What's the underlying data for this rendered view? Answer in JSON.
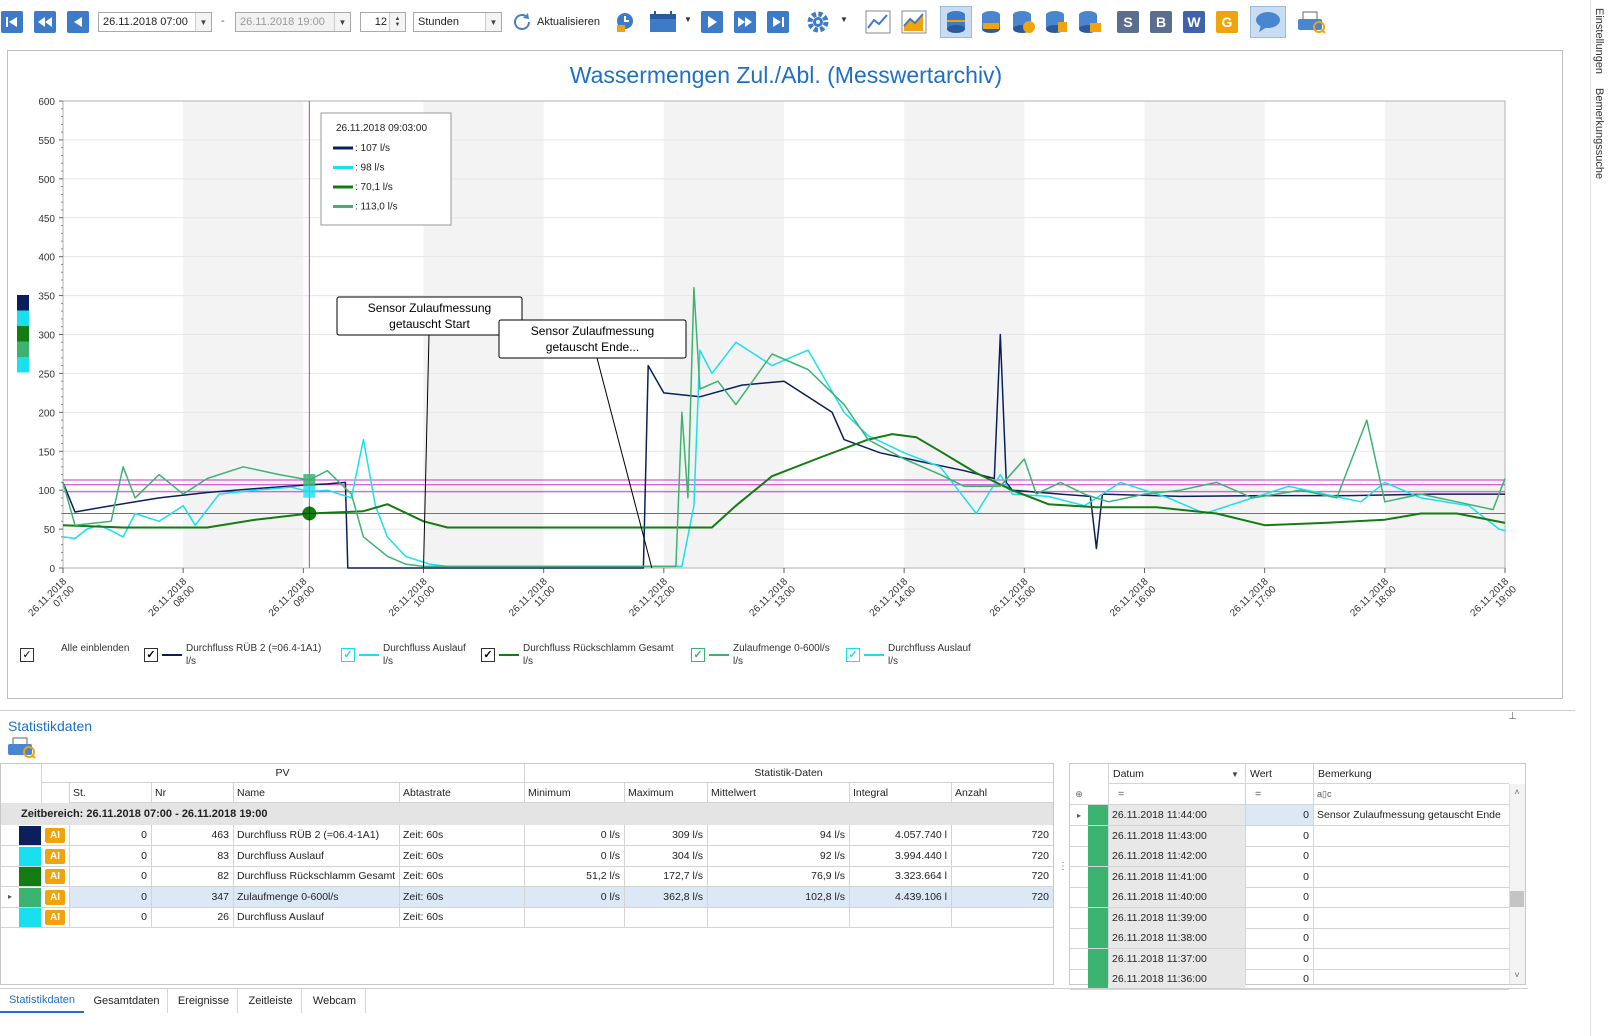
{
  "toolbar": {
    "date_from": "26.11.2018 07:00",
    "date_separator": "-",
    "date_to": "26.11.2018 19:00",
    "count": "12",
    "unit": "Stunden",
    "refresh_label": "Aktualisieren",
    "letters": [
      "S",
      "B",
      "W",
      "G"
    ],
    "colors": {
      "nav": "#2f6db5",
      "accent": "#2f6db5",
      "s": "#5a6f8f",
      "b": "#5a6f8f",
      "w": "#3f63a8",
      "g": "#f0a30a"
    }
  },
  "right_tabs": [
    "Einstellungen",
    "Bemerkungssuche"
  ],
  "chart_data": {
    "type": "line",
    "title": "Wassermengen Zul./Abl. (Messwertarchiv)",
    "ylim": [
      0,
      600
    ],
    "yticks": [
      "0",
      "50",
      "100",
      "150",
      "200",
      "250",
      "300",
      "350",
      "400",
      "450",
      "500",
      "550",
      "600"
    ],
    "xlim": [
      7,
      19
    ],
    "xticks": [
      [
        "26.11.2018",
        "07:00"
      ],
      [
        "26.11.2018",
        "08:00"
      ],
      [
        "26.11.2018",
        "09:00"
      ],
      [
        "26.11.2018",
        "10:00"
      ],
      [
        "26.11.2018",
        "11:00"
      ],
      [
        "26.11.2018",
        "12:00"
      ],
      [
        "26.11.2018",
        "13:00"
      ],
      [
        "26.11.2018",
        "14:00"
      ],
      [
        "26.11.2018",
        "15:00"
      ],
      [
        "26.11.2018",
        "16:00"
      ],
      [
        "26.11.2018",
        "17:00"
      ],
      [
        "26.11.2018",
        "18:00"
      ],
      [
        "26.11.2018",
        "19:00"
      ]
    ],
    "grid": true,
    "cursor": {
      "x": 9.05,
      "time": "26.11.2018 09:03:00",
      "values": [
        ": 107 l/s",
        ": 98 l/s",
        ": 70,1 l/s",
        ": 113,0 l/s"
      ],
      "colors": [
        "#0b1f5c",
        "#19e0ef",
        "#137c13",
        "#3cb371"
      ]
    },
    "reference_lines": [
      70,
      98,
      107,
      113
    ],
    "reference_color": "#cc33cc",
    "annotations": [
      {
        "text": [
          "Sensor Zulaufmessung",
          "getauscht Start"
        ],
        "x": 10.0
      },
      {
        "text": [
          "Sensor Zulaufmessung",
          "getauscht Ende..."
        ],
        "x": 11.9
      }
    ],
    "series": [
      {
        "name": "Durchfluss RÜB 2 (=06.4-1A1) l/s",
        "color": "#0b1f5c",
        "points": [
          [
            7,
            110
          ],
          [
            7.1,
            72
          ],
          [
            7.4,
            80
          ],
          [
            7.8,
            90
          ],
          [
            8.2,
            97
          ],
          [
            8.6,
            102
          ],
          [
            9.05,
            107
          ],
          [
            9.2,
            108
          ],
          [
            9.35,
            110
          ],
          [
            9.37,
            0
          ],
          [
            11.0,
            0
          ],
          [
            11.83,
            0
          ],
          [
            11.87,
            260
          ],
          [
            12.0,
            225
          ],
          [
            12.3,
            220
          ],
          [
            12.65,
            235
          ],
          [
            13.0,
            240
          ],
          [
            13.4,
            200
          ],
          [
            13.5,
            165
          ],
          [
            13.8,
            148
          ],
          [
            14.1,
            138
          ],
          [
            14.5,
            125
          ],
          [
            14.75,
            115
          ],
          [
            14.8,
            300
          ],
          [
            14.85,
            110
          ],
          [
            14.9,
            100
          ],
          [
            15.3,
            95
          ],
          [
            15.55,
            92
          ],
          [
            15.6,
            25
          ],
          [
            15.65,
            95
          ],
          [
            16.3,
            92
          ],
          [
            17.0,
            93
          ],
          [
            17.7,
            93
          ],
          [
            18.4,
            95
          ],
          [
            19,
            95
          ]
        ]
      },
      {
        "name": "Durchfluss Auslauf l/s",
        "color": "#19e0ef",
        "points": [
          [
            7,
            40
          ],
          [
            7.1,
            38
          ],
          [
            7.2,
            50
          ],
          [
            7.3,
            55
          ],
          [
            7.4,
            48
          ],
          [
            7.5,
            40
          ],
          [
            7.6,
            70
          ],
          [
            7.8,
            60
          ],
          [
            8.0,
            80
          ],
          [
            8.1,
            55
          ],
          [
            8.3,
            95
          ],
          [
            8.6,
            100
          ],
          [
            8.9,
            104
          ],
          [
            9.05,
            98
          ],
          [
            9.2,
            100
          ],
          [
            9.4,
            90
          ],
          [
            9.5,
            165
          ],
          [
            9.6,
            80
          ],
          [
            9.7,
            40
          ],
          [
            9.85,
            15
          ],
          [
            10.05,
            5
          ],
          [
            10.2,
            2
          ],
          [
            11.85,
            2
          ],
          [
            12.15,
            2
          ],
          [
            12.25,
            80
          ],
          [
            12.3,
            280
          ],
          [
            12.4,
            250
          ],
          [
            12.6,
            290
          ],
          [
            12.9,
            260
          ],
          [
            13.2,
            280
          ],
          [
            13.5,
            200
          ],
          [
            13.7,
            170
          ],
          [
            14.0,
            148
          ],
          [
            14.3,
            130
          ],
          [
            14.5,
            90
          ],
          [
            14.6,
            70
          ],
          [
            14.8,
            120
          ],
          [
            14.9,
            95
          ],
          [
            15.2,
            92
          ],
          [
            15.5,
            80
          ],
          [
            15.8,
            110
          ],
          [
            16.2,
            90
          ],
          [
            16.5,
            70
          ],
          [
            16.9,
            90
          ],
          [
            17.2,
            105
          ],
          [
            17.5,
            95
          ],
          [
            17.8,
            85
          ],
          [
            18.0,
            110
          ],
          [
            18.3,
            90
          ],
          [
            18.5,
            85
          ],
          [
            18.7,
            80
          ],
          [
            18.95,
            50
          ],
          [
            19,
            48
          ]
        ]
      },
      {
        "name": "Durchfluss Rückschlamm Gesamt l/s",
        "color": "#137c13",
        "points": [
          [
            7,
            55
          ],
          [
            7.5,
            52
          ],
          [
            8.2,
            52
          ],
          [
            8.6,
            62
          ],
          [
            9.05,
            70
          ],
          [
            9.5,
            73
          ],
          [
            9.7,
            82
          ],
          [
            10.0,
            60
          ],
          [
            10.2,
            52
          ],
          [
            11.7,
            52
          ],
          [
            12.4,
            52
          ],
          [
            12.6,
            80
          ],
          [
            12.9,
            118
          ],
          [
            13.3,
            142
          ],
          [
            13.7,
            165
          ],
          [
            13.9,
            172
          ],
          [
            14.1,
            168
          ],
          [
            14.3,
            150
          ],
          [
            14.6,
            122
          ],
          [
            14.9,
            100
          ],
          [
            15.2,
            82
          ],
          [
            15.6,
            78
          ],
          [
            16.1,
            78
          ],
          [
            16.6,
            70
          ],
          [
            17.0,
            55
          ],
          [
            17.5,
            58
          ],
          [
            18.0,
            62
          ],
          [
            18.3,
            70
          ],
          [
            18.6,
            70
          ],
          [
            19,
            58
          ]
        ]
      },
      {
        "name": "Zulaufmenge 0-600l/s l/s",
        "color": "#3cb371",
        "points": [
          [
            7,
            110
          ],
          [
            7.1,
            55
          ],
          [
            7.4,
            60
          ],
          [
            7.5,
            130
          ],
          [
            7.6,
            90
          ],
          [
            7.8,
            120
          ],
          [
            8.0,
            95
          ],
          [
            8.2,
            115
          ],
          [
            8.5,
            130
          ],
          [
            8.8,
            120
          ],
          [
            9.05,
            113
          ],
          [
            9.2,
            125
          ],
          [
            9.4,
            95
          ],
          [
            9.5,
            40
          ],
          [
            9.7,
            15
          ],
          [
            9.85,
            5
          ],
          [
            10.0,
            2
          ],
          [
            11.9,
            2
          ],
          [
            12.1,
            2
          ],
          [
            12.15,
            200
          ],
          [
            12.2,
            90
          ],
          [
            12.25,
            360
          ],
          [
            12.3,
            230
          ],
          [
            12.45,
            240
          ],
          [
            12.6,
            210
          ],
          [
            12.9,
            275
          ],
          [
            13.2,
            255
          ],
          [
            13.5,
            210
          ],
          [
            13.7,
            165
          ],
          [
            14.0,
            140
          ],
          [
            14.3,
            120
          ],
          [
            14.5,
            105
          ],
          [
            14.8,
            105
          ],
          [
            15.0,
            140
          ],
          [
            15.1,
            95
          ],
          [
            15.3,
            110
          ],
          [
            15.5,
            95
          ],
          [
            15.7,
            85
          ],
          [
            16.0,
            95
          ],
          [
            16.3,
            100
          ],
          [
            16.6,
            110
          ],
          [
            16.9,
            90
          ],
          [
            17.3,
            100
          ],
          [
            17.6,
            90
          ],
          [
            17.85,
            190
          ],
          [
            18.0,
            85
          ],
          [
            18.3,
            95
          ],
          [
            18.6,
            85
          ],
          [
            18.9,
            75
          ],
          [
            19,
            115
          ]
        ]
      }
    ]
  },
  "legend": {
    "show_all": "Alle einblenden",
    "items": [
      {
        "label": "Durchfluss RÜB 2 (=06.4-1A1)",
        "unit": "l/s",
        "color": "#0b1f5c",
        "dark": true
      },
      {
        "label": "Durchfluss Auslauf",
        "unit": "l/s",
        "color": "#19e0ef",
        "dark": false
      },
      {
        "label": "Durchfluss Rückschlamm Gesamt",
        "unit": "l/s",
        "color": "#137c13",
        "dark": true
      },
      {
        "label": "Zulaufmenge 0-600l/s",
        "unit": "l/s",
        "color": "#3cb371",
        "dark": false
      },
      {
        "label": "Durchfluss Auslauf",
        "unit": "l/s",
        "color": "#19e0ef",
        "dark": false
      }
    ]
  },
  "stats": {
    "title": "Statistikdaten",
    "group_pv": "PV",
    "group_stat": "Statistik-Daten",
    "columns": [
      "St.",
      "Nr",
      "Name",
      "Abtastrate",
      "Minimum",
      "Maximum",
      "Mittelwert",
      "Integral",
      "Anzahl"
    ],
    "group_row": "Zeitbereich:  26.11.2018 07:00 - 26.11.2018 19:00",
    "badge": "AI",
    "rows": [
      {
        "color": "#0b1f5c",
        "st": "0",
        "nr": "463",
        "name": "Durchfluss RÜB 2 (=06.4-1A1)",
        "rate": "Zeit: 60s",
        "min": "0 l/s",
        "max": "309 l/s",
        "mean": "94 l/s",
        "integral": "4.057.740 l",
        "count": "720"
      },
      {
        "color": "#19e0ef",
        "st": "0",
        "nr": "83",
        "name": "Durchfluss Auslauf",
        "rate": "Zeit: 60s",
        "min": "0 l/s",
        "max": "304 l/s",
        "mean": "92 l/s",
        "integral": "3.994.440 l",
        "count": "720"
      },
      {
        "color": "#137c13",
        "st": "0",
        "nr": "82",
        "name": "Durchfluss Rückschlamm Gesamt",
        "rate": "Zeit: 60s",
        "min": "51,2 l/s",
        "max": "172,7 l/s",
        "mean": "76,9 l/s",
        "integral": "3.323.664 l",
        "count": "720"
      },
      {
        "color": "#3cb371",
        "st": "0",
        "nr": "347",
        "name": "Zulaufmenge 0-600l/s",
        "rate": "Zeit: 60s",
        "min": "0 l/s",
        "max": "362,8 l/s",
        "mean": "102,8 l/s",
        "integral": "4.439.106 l",
        "count": "720",
        "selected": true
      },
      {
        "color": "#19e0ef",
        "st": "0",
        "nr": "26",
        "name": "Durchfluss Auslauf",
        "rate": "Zeit: 60s",
        "min": "",
        "max": "",
        "mean": "",
        "integral": "",
        "count": ""
      }
    ]
  },
  "remarks": {
    "columns": [
      "Datum",
      "Wert",
      "Bemerkung"
    ],
    "filter_eq": "=",
    "filter_icon": "a▯c",
    "rows": [
      {
        "date": "26.11.2018 11:44:00",
        "value": "0",
        "remark": "Sensor Zulaufmessung getauscht Ende"
      },
      {
        "date": "26.11.2018 11:43:00",
        "value": "0",
        "remark": ""
      },
      {
        "date": "26.11.2018 11:42:00",
        "value": "0",
        "remark": ""
      },
      {
        "date": "26.11.2018 11:41:00",
        "value": "0",
        "remark": ""
      },
      {
        "date": "26.11.2018 11:40:00",
        "value": "0",
        "remark": ""
      },
      {
        "date": "26.11.2018 11:39:00",
        "value": "0",
        "remark": ""
      },
      {
        "date": "26.11.2018 11:38:00",
        "value": "0",
        "remark": ""
      },
      {
        "date": "26.11.2018 11:37:00",
        "value": "0",
        "remark": ""
      },
      {
        "date": "26.11.2018 11:36:00",
        "value": "0",
        "remark": ""
      }
    ]
  },
  "bottom_tabs": [
    "Statistikdaten",
    "Gesamtdaten",
    "Ereignisse",
    "Zeitleiste",
    "Webcam"
  ]
}
